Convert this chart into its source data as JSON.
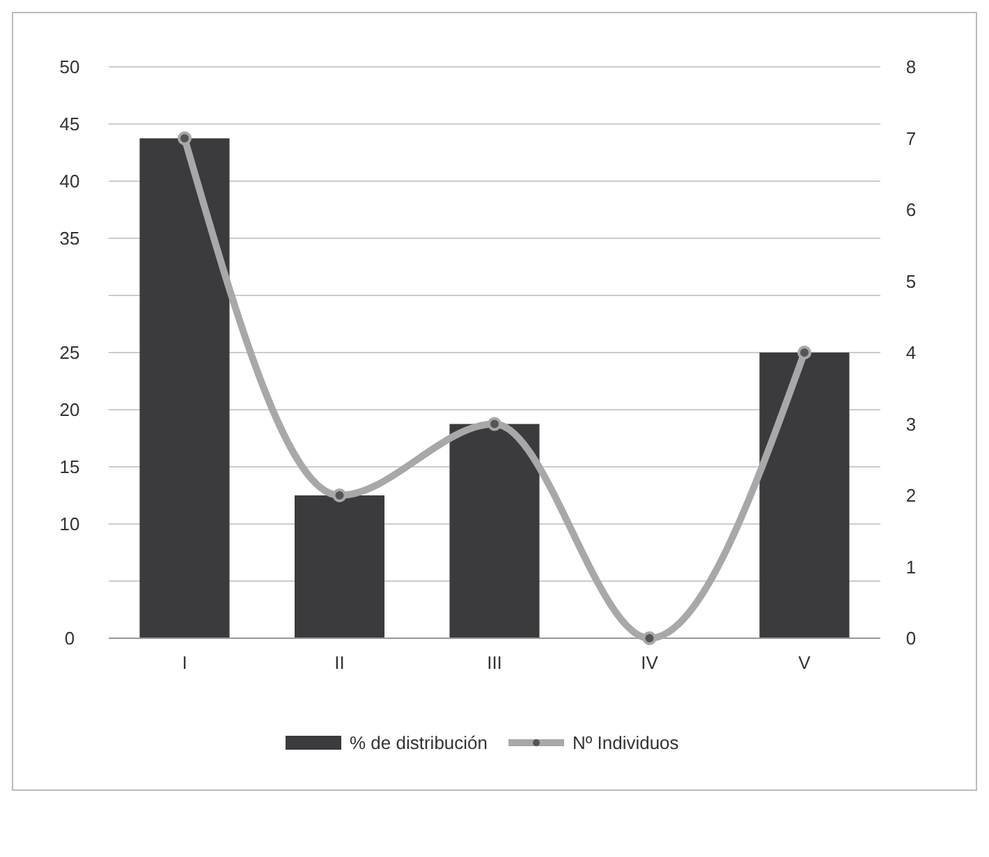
{
  "chart_data": {
    "type": "bar",
    "categories": [
      "I",
      "II",
      "III",
      "IV",
      "V"
    ],
    "series": [
      {
        "name": "% de distribución",
        "color": "#3b3b3d",
        "values": [
          43.75,
          12.5,
          18.75,
          0,
          25
        ]
      },
      {
        "name": "Nº Individuos",
        "type": "line",
        "axis": "y2",
        "color": "#a8a8aa",
        "values": [
          7,
          2,
          3,
          0,
          4
        ]
      }
    ],
    "ylim": [
      0,
      50
    ],
    "yticks": [
      0,
      {
        "value": 5,
        "label": null
      },
      10,
      15,
      20,
      25,
      {
        "value": 30,
        "label": null
      },
      35,
      40,
      45,
      50
    ],
    "y2lim": [
      0,
      8
    ],
    "y2ticks": [
      0,
      1,
      2,
      3,
      4,
      5,
      6,
      7,
      8
    ],
    "grid": "y",
    "legend": "bottom",
    "marker": "circle"
  }
}
